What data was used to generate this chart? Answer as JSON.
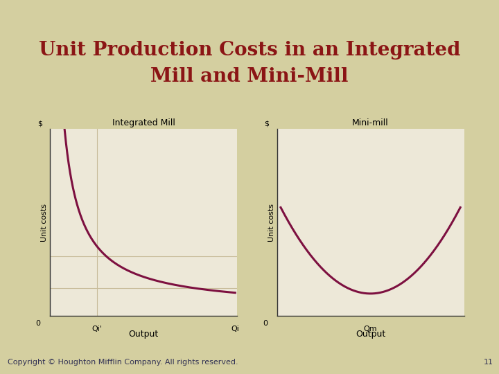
{
  "title_line1": "Unit Production Costs in an Integrated",
  "title_line2": "Mill and Mini-Mill",
  "title_color": "#8B1515",
  "title_fontsize": 20,
  "title_fontweight": "bold",
  "bg_tan": "#D4CFA0",
  "bg_white": "#FFFFFF",
  "bg_plot": "#EDE8D8",
  "border_color": "#999999",
  "curve_color": "#7D1040",
  "curve_linewidth": 2.2,
  "grid_color": "#C8BC9A",
  "grid_linewidth": 0.8,
  "left_title": "Integrated Mill",
  "right_title": "Mini-mill",
  "left_ylabel": "Unit costs",
  "right_ylabel": "Unit costs",
  "left_xlabel": "Output",
  "right_xlabel": "Output",
  "left_dollar": "$",
  "right_dollar": "$",
  "left_zero": "0",
  "right_zero": "0",
  "left_qi_prime": "Qi'",
  "left_qi": "Qi",
  "right_qm": "Qm",
  "copyright_text": "Copyright © Houghton Mifflin Company. All rights reserved.",
  "copyright_fontsize": 8,
  "page_number": "11",
  "footer_bg": "#AEBAC8",
  "label_fontsize": 8,
  "title_chart_fontsize": 9
}
